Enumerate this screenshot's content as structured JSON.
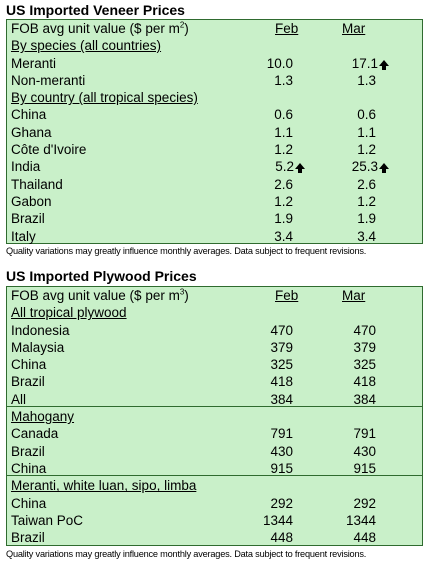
{
  "veneer": {
    "title": "US Imported Veneer Prices",
    "header": {
      "label": "FOB avg unit value ($ per m",
      "sup": "2",
      "close": ")",
      "feb": "Feb",
      "mar": "Mar"
    },
    "rows": [
      {
        "type": "section",
        "label": "By species (all countries)"
      },
      {
        "type": "data",
        "label": "Meranti",
        "feb": "10.0",
        "mar": "17.1",
        "mar_up": true
      },
      {
        "type": "data",
        "label": "Non-meranti",
        "feb": "1.3",
        "mar": "1.3"
      },
      {
        "type": "section",
        "label": "By country (all tropical species)"
      },
      {
        "type": "data",
        "label": "China",
        "feb": "0.6",
        "mar": "0.6"
      },
      {
        "type": "data",
        "label": "Ghana",
        "feb": "1.1",
        "mar": "1.1"
      },
      {
        "type": "data",
        "label": "Côte d'Ivoire",
        "feb": "1.2",
        "mar": "1.2"
      },
      {
        "type": "data",
        "label": "India",
        "feb": "5.2",
        "mar": "25.3",
        "feb_up": true,
        "mar_up": true
      },
      {
        "type": "data",
        "label": "Thailand",
        "feb": "2.6",
        "mar": "2.6"
      },
      {
        "type": "data",
        "label": "Gabon",
        "feb": "1.2",
        "mar": "1.2"
      },
      {
        "type": "data",
        "label": "Brazil",
        "feb": "1.9",
        "mar": "1.9"
      },
      {
        "type": "data",
        "label": "Italy",
        "feb": "3.4",
        "mar": "3.4"
      }
    ],
    "note": "Quality variations may greatly influence monthly averages. Data subject to frequent revisions."
  },
  "plywood": {
    "title": "US Imported Plywood Prices",
    "header": {
      "label": "FOB avg unit value ($ per m",
      "sup": "3",
      "close": ")",
      "feb": "Feb",
      "mar": "Mar"
    },
    "rows": [
      {
        "type": "section",
        "label": "All tropical plywood"
      },
      {
        "type": "data",
        "label": "Indonesia",
        "feb": "470",
        "mar": "470"
      },
      {
        "type": "data",
        "label": "Malaysia",
        "feb": "379",
        "mar": "379"
      },
      {
        "type": "data",
        "label": "China",
        "feb": "325",
        "mar": "325"
      },
      {
        "type": "data",
        "label": "Brazil",
        "feb": "418",
        "mar": "418"
      },
      {
        "type": "data",
        "label": "All",
        "feb": "384",
        "mar": "384",
        "sep_after": true
      },
      {
        "type": "section",
        "label": "Mahogany"
      },
      {
        "type": "data",
        "label": "Canada",
        "feb": "791",
        "mar": "791"
      },
      {
        "type": "data",
        "label": "Brazil",
        "feb": "430",
        "mar": "430"
      },
      {
        "type": "data",
        "label": "China",
        "feb": "915",
        "mar": "915",
        "sep_after": true
      },
      {
        "type": "section",
        "label": "Meranti, white luan, sipo, limba"
      },
      {
        "type": "data",
        "label": "China",
        "feb": "292",
        "mar": "292"
      },
      {
        "type": "data",
        "label": "Taiwan PoC",
        "feb": "1344",
        "mar": "1344"
      },
      {
        "type": "data",
        "label": "Brazil",
        "feb": "448",
        "mar": "448"
      }
    ],
    "note": "Quality variations may greatly influence monthly averages. Data subject to frequent revisions."
  },
  "icons": {
    "increase": "up-arrow-icon"
  }
}
